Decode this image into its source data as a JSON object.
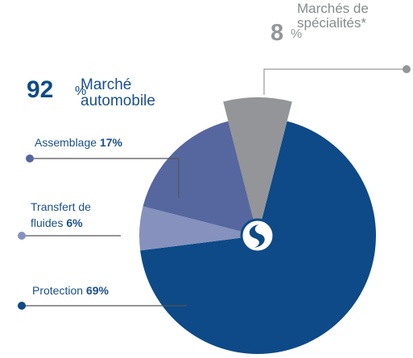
{
  "chart_data": {
    "type": "pie",
    "groups": [
      {
        "name": "Marchés de spécialités*",
        "value": 8,
        "unit": "%",
        "color": "#939598"
      },
      {
        "name": "Marché automobile",
        "value": 92,
        "unit": "%",
        "color": "#0d4a87"
      }
    ],
    "categories": [
      "Protection",
      "Transfert de fluides",
      "Assemblage"
    ],
    "values": [
      69,
      6,
      17
    ],
    "value_labels": [
      "69%",
      "6%",
      "17%"
    ],
    "colors": [
      "#0d4a87",
      "#8692bd",
      "#56679f"
    ]
  }
}
